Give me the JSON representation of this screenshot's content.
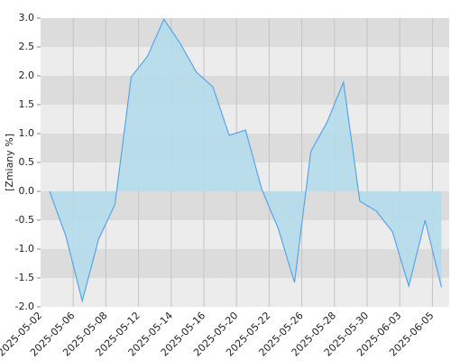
{
  "chart_data": {
    "type": "area",
    "y_label": "[Zmiany %]",
    "categories": [
      "2025-05-02",
      null,
      "2025-05-06",
      null,
      "2025-05-08",
      null,
      "2025-05-12",
      null,
      "2025-05-14",
      null,
      "2025-05-16",
      null,
      "2025-05-20",
      null,
      "2025-05-22",
      null,
      "2025-05-26",
      null,
      "2025-05-28",
      null,
      "2025-05-30",
      null,
      "2025-06-03",
      null,
      "2025-06-05"
    ],
    "values": [
      0.0,
      -0.78,
      -1.9,
      -0.83,
      -0.23,
      1.98,
      2.34,
      2.98,
      2.56,
      2.06,
      1.81,
      0.97,
      1.06,
      0.03,
      -0.64,
      -1.58,
      0.69,
      1.2,
      1.89,
      -0.17,
      -0.34,
      -0.7,
      -1.64,
      -0.5,
      -1.66
    ],
    "color": "#5aa5e6",
    "fill_color": "#b5dcec",
    "ylim": [
      -2,
      3
    ],
    "yticks": [
      {
        "value": -2,
        "label": "-2.0"
      },
      {
        "value": -1.5,
        "label": "-1.5"
      },
      {
        "value": -1,
        "label": "-1.0"
      },
      {
        "value": -0.5,
        "label": "-0.5"
      },
      {
        "value": 0,
        "label": "0.0"
      },
      {
        "value": 0.5,
        "label": "0.5"
      },
      {
        "value": 1,
        "label": "1.0"
      },
      {
        "value": 1.5,
        "label": "1.5"
      },
      {
        "value": 2,
        "label": "2.0"
      },
      {
        "value": 2.5,
        "label": "2.5"
      },
      {
        "value": 3,
        "label": "3.0"
      }
    ],
    "grid": true
  }
}
